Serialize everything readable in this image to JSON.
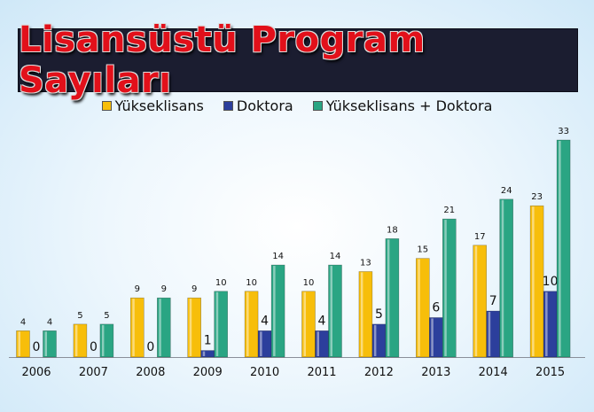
{
  "chart_data": {
    "type": "bar",
    "title": "Lisansüstü Program Sayıları",
    "categories": [
      "2006",
      "2007",
      "2008",
      "2009",
      "2010",
      "2011",
      "2012",
      "2013",
      "2014",
      "2015"
    ],
    "series": [
      {
        "name": "Yükseklisans",
        "color": "#f7be0a",
        "values": [
          4,
          5,
          9,
          9,
          10,
          10,
          13,
          15,
          17,
          23
        ]
      },
      {
        "name": "Doktora",
        "color": "#2c3f9c",
        "values": [
          0,
          0,
          0,
          1,
          4,
          4,
          5,
          6,
          7,
          10
        ]
      },
      {
        "name": "Yükseklisans + Doktora",
        "color": "#2aa583",
        "values": [
          4,
          5,
          9,
          10,
          14,
          14,
          18,
          21,
          24,
          33
        ]
      }
    ],
    "ylim": [
      0,
      33
    ],
    "grid": false,
    "legend": "top"
  }
}
